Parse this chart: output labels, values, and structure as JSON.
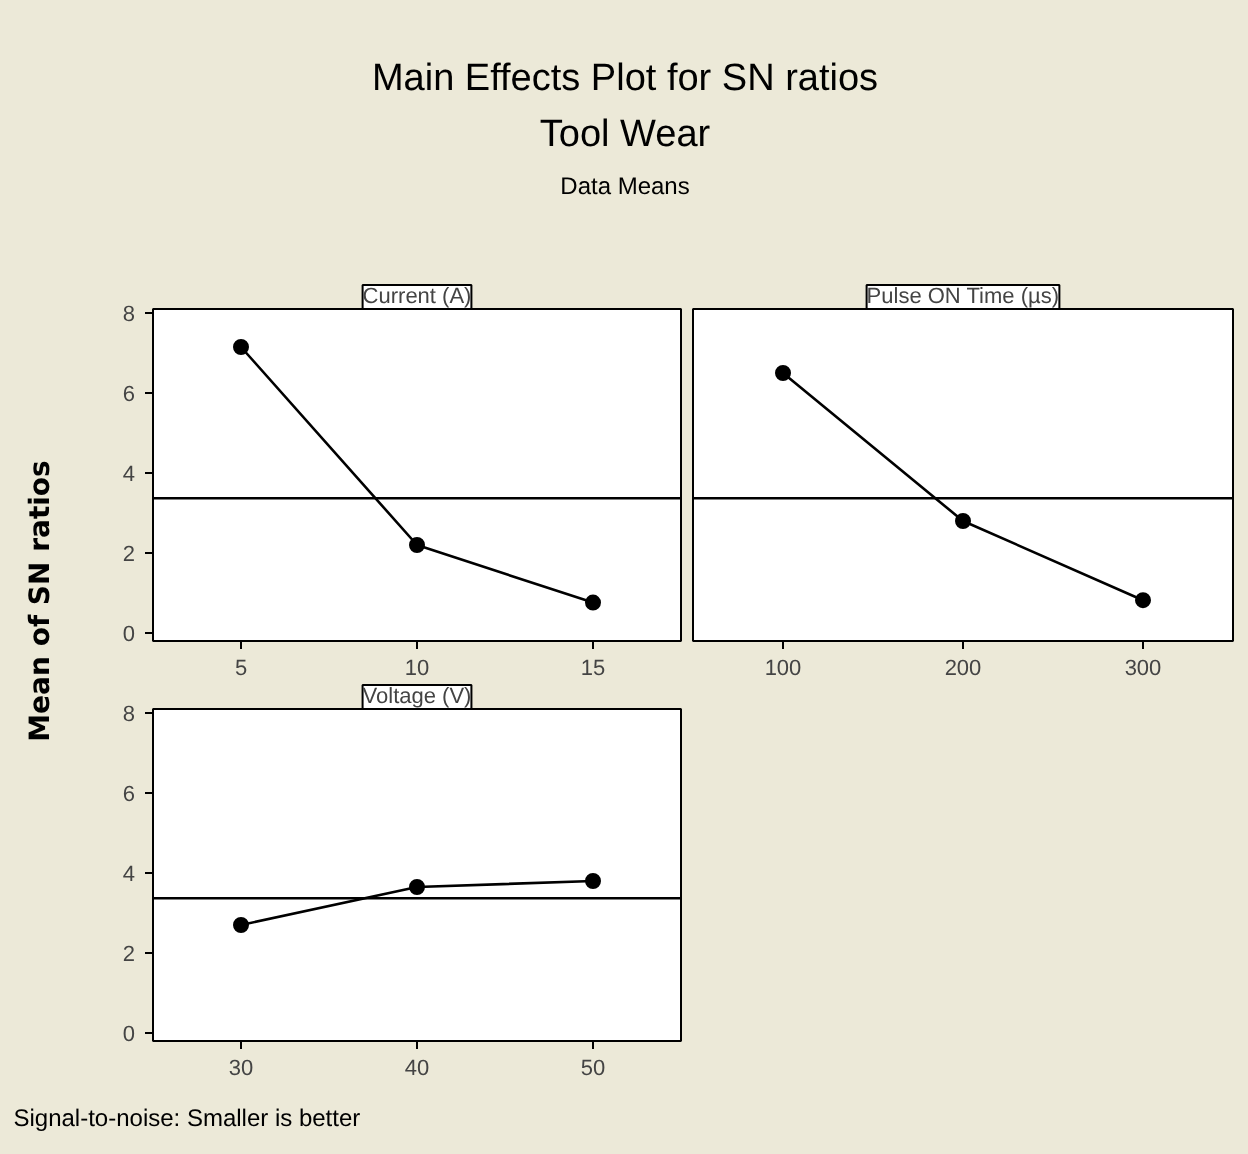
{
  "chart_data": [
    {
      "type": "line",
      "title": "Current (A)",
      "ylabel": "Mean of SN ratios",
      "annotations": [
        "Main Effects Plot for SN ratios",
        "Tool Wear",
        "Data Means",
        "Signal-to-noise: Smaller is better"
      ],
      "x": [
        5,
        10,
        15
      ],
      "xlim": [
        2.5,
        17.5
      ],
      "xticks": [
        5,
        10,
        15
      ],
      "ylim": [
        -0.2,
        8.1
      ],
      "yticks": [
        0,
        2,
        4,
        6,
        8
      ],
      "series": [
        {
          "color": "#000000",
          "values": [
            7.15,
            2.2,
            0.76
          ]
        }
      ],
      "ref_lines": [
        {
          "axis": "y",
          "value": 3.37,
          "label": null
        }
      ],
      "marker": "circle",
      "grid": false
    },
    {
      "type": "line",
      "title": "Pulse ON Time (µs)",
      "x": [
        100,
        200,
        300
      ],
      "xlim": [
        50,
        350
      ],
      "xticks": [
        100,
        200,
        300
      ],
      "ylim": [
        -0.2,
        8.1
      ],
      "tick_labels": "x",
      "series": [
        {
          "color": "#000000",
          "values": [
            6.5,
            2.8,
            0.82
          ]
        }
      ],
      "ref_lines": [
        {
          "axis": "y",
          "value": 3.37,
          "label": null
        }
      ],
      "marker": "circle",
      "grid": false
    },
    {
      "type": "line",
      "title": "Voltage (V)",
      "x": [
        30,
        40,
        50
      ],
      "xlim": [
        25,
        55
      ],
      "xticks": [
        30,
        40,
        50
      ],
      "ylim": [
        -0.2,
        8.1
      ],
      "yticks": [
        0,
        2,
        4,
        6,
        8
      ],
      "series": [
        {
          "color": "#000000",
          "values": [
            2.7,
            3.65,
            3.8
          ]
        }
      ],
      "ref_lines": [
        {
          "axis": "y",
          "value": 3.37,
          "label": null
        }
      ],
      "marker": "circle",
      "grid": false
    }
  ]
}
